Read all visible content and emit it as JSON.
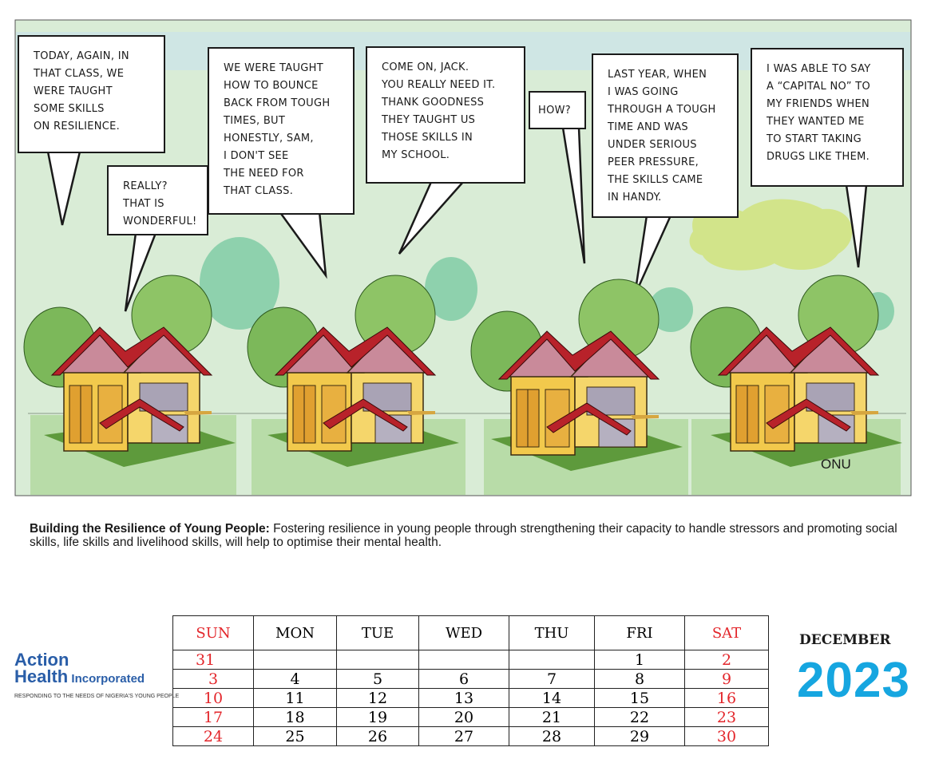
{
  "comic": {
    "bubbles": [
      "TODAY, AGAIN, IN\nTHAT CLASS, WE\nWERE TAUGHT\nSOME SKILLS\nON RESILIENCE.",
      "REALLY?\nTHAT IS\nWONDERFUL!",
      "WE WERE TAUGHT\nHOW TO BOUNCE\nBACK FROM TOUGH\nTIMES, BUT\nHONESTLY, SAM,\nI DON'T SEE\nTHE NEED FOR\nTHAT  CLASS.",
      "COME ON, JACK.\nYOU REALLY NEED IT.\nTHANK GOODNESS\nTHEY TAUGHT US\nTHOSE SKILLS  IN\nMY SCHOOL.",
      "HOW?",
      "LAST YEAR, WHEN\nI WAS GOING\nTHROUGH A TOUGH\nTIME AND WAS\nUNDER SERIOUS\nPEER PRESSURE,\nTHE SKILLS CAME\nIN HANDY.",
      "I WAS ABLE TO SAY\nA “CAPITAL NO” TO\nMY FRIENDS WHEN\nTHEY WANTED ME\nTO START TAKING\nDRUGS LIKE THEM."
    ],
    "signature": "ONU"
  },
  "caption": {
    "title": "Building the Resilience of Young People:",
    "text": " Fostering resilience in young people through strengthening their capacity to handle stressors  and promoting social skills, life skills and livelihood skills, will help to optimise their mental health."
  },
  "calendar": {
    "days": [
      "SUN",
      "MON",
      "TUE",
      "WED",
      "THU",
      "FRI",
      "SAT"
    ],
    "weeks": [
      [
        "31",
        "",
        "",
        "",
        "",
        "1",
        "2"
      ],
      [
        "3",
        "4",
        "5",
        "6",
        "7",
        "8",
        "9"
      ],
      [
        "10",
        "11",
        "12",
        "13",
        "14",
        "15",
        "16"
      ],
      [
        "17",
        "18",
        "19",
        "20",
        "21",
        "22",
        "23"
      ],
      [
        "24",
        "25",
        "26",
        "27",
        "28",
        "29",
        "30"
      ]
    ],
    "month": "DECEMBER",
    "year": "2023"
  },
  "logo": {
    "line1": "Action",
    "line2": "Health",
    "line2_suffix": " Incorporated",
    "tagline": "RESPONDING TO THE NEEDS OF NIGERIA'S YOUNG PEOPLE"
  },
  "colors": {
    "weekend": "#e3262b",
    "year": "#16a6e0",
    "logo": "#2a5ea8",
    "sky": "#d9ecd6",
    "ground": "#b8dca8",
    "roof": "#b8222a",
    "wall": "#f2c94c"
  }
}
